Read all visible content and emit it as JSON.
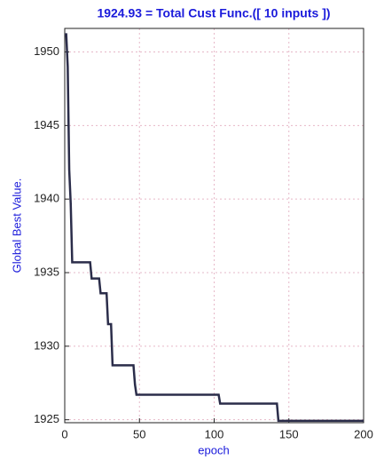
{
  "chart_data": {
    "type": "line",
    "title": "1924.93 = Total Cust Func.([ 10 inputs ])",
    "x_label": "epoch",
    "y_label": "Global Best Value.",
    "x": [
      0,
      1,
      2,
      3,
      4,
      5,
      17,
      18,
      23,
      24,
      28,
      29,
      31,
      32,
      46,
      47,
      48,
      103,
      104,
      142,
      143,
      200
    ],
    "series": [
      {
        "color": "#2b2d4a",
        "values": [
          1951.2,
          1951.2,
          1949,
          1942,
          1939.7,
          1935.7,
          1935.7,
          1934.6,
          1934.6,
          1933.6,
          1933.6,
          1931.5,
          1931.5,
          1928.7,
          1928.7,
          1927.4,
          1926.7,
          1926.7,
          1926.1,
          1926.1,
          1924.93,
          1924.93
        ]
      }
    ],
    "xlim": [
      0,
      200
    ],
    "xticks": [
      0,
      50,
      100,
      150,
      200
    ],
    "ylim": [
      1924.8,
      1951.6
    ],
    "yticks": [
      1925,
      1930,
      1935,
      1940,
      1945,
      1950
    ],
    "grid": true
  }
}
